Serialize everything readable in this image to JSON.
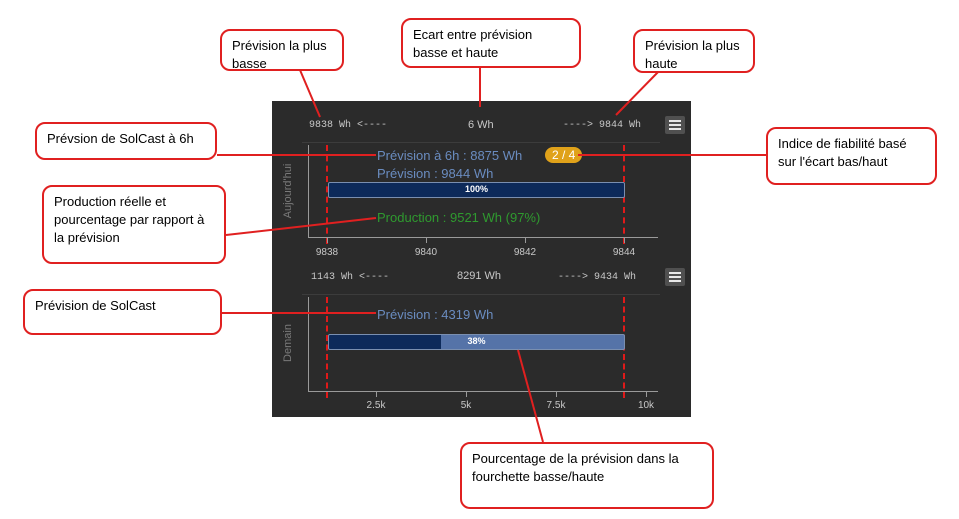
{
  "today": {
    "low_header": "9838 Wh <----",
    "spread_header": "6 Wh",
    "high_header": "----> 9844 Wh",
    "section_label": "Aujourd'hui",
    "forecast_6h": "Prévision à 6h : 8875 Wh",
    "reliability_badge": "2 / 4",
    "forecast": "Prévision : 9844 Wh",
    "bar_label": "100%",
    "bar_fraction": 1.0,
    "production": "Production : 9521 Wh (97%)",
    "x_ticks": [
      "9838",
      "9840",
      "9842",
      "9844"
    ]
  },
  "tomorrow": {
    "low_header": "1143 Wh <----",
    "spread_header": "8291 Wh",
    "high_header": "----> 9434 Wh",
    "section_label": "Demain",
    "forecast": "Prévision : 4319 Wh",
    "bar_label": "38%",
    "bar_fraction": 0.38,
    "x_ticks": [
      "2.5k",
      "5k",
      "7.5k",
      "10k"
    ]
  },
  "callouts": {
    "low": "Prévision la plus basse",
    "spread": "Ecart entre prévision basse et haute",
    "high": "Prévision la plus haute",
    "solcast_6h": "Prévsion de SolCast à 6h",
    "reliability": "Indice de fiabilité basé sur l'écart bas/haut",
    "production": "Production réelle et pourcentage par rapport à la prévision",
    "solcast": "Prévision de SolCast",
    "percentage": "Pourcentage de la prévision dans la fourchette basse/haute"
  },
  "colors": {
    "panel_bg": "#2b2b2b",
    "forecast_text": "#6a8cc0",
    "production_text": "#2f9a2f",
    "badge": "#e0a21a",
    "bar_fill": "#0d2a5a",
    "bar_bg": "#5573a8",
    "callout_border": "#e02020"
  },
  "icons": {
    "menu": "hamburger-menu-icon"
  }
}
